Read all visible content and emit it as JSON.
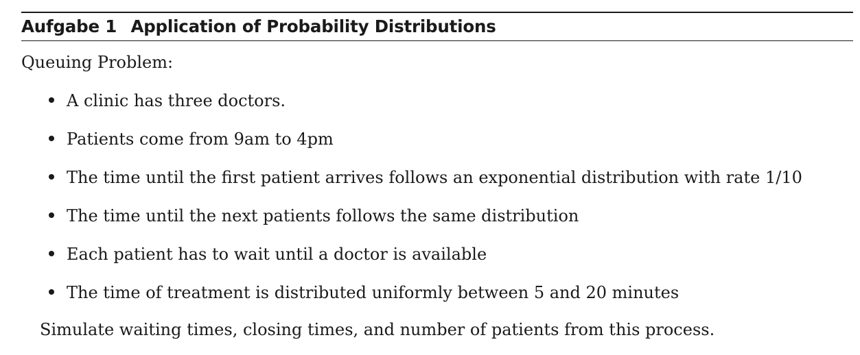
{
  "exercise": {
    "label": "Aufgabe",
    "number": "1",
    "title": "Application of Probability Distributions"
  },
  "intro": "Queuing Problem:",
  "bullets": [
    "A clinic has three doctors.",
    "Patients come from 9am to 4pm",
    "The time until the first patient arrives follows an exponential distribution with rate 1/10",
    "The time until the next patients follows the same distribution",
    "Each patient has to wait until a doctor is available",
    "The time of treatment is distributed uniformly between 5 and 20 minutes"
  ],
  "closing": "Simulate waiting times, closing times, and number of patients from this process."
}
